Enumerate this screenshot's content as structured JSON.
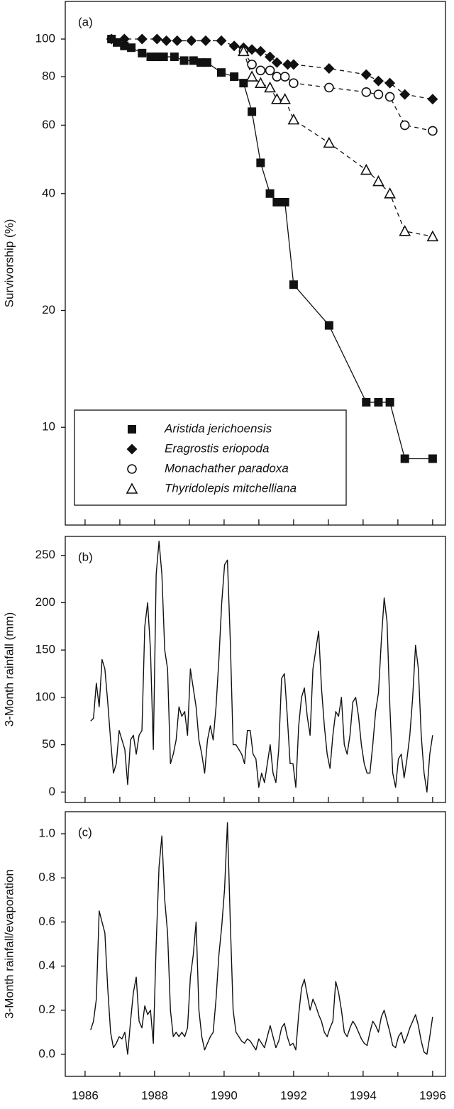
{
  "chart_data": [
    {
      "type": "line",
      "label": "(a)",
      "ylabel": "Survivorship (%)",
      "log_y": true,
      "xlim": [
        1985.43,
        1996.37
      ],
      "xticks": [
        1986,
        1987,
        1988,
        1989,
        1990,
        1991,
        1992,
        1993,
        1994,
        1995,
        1996
      ],
      "xtick_labels": false,
      "ylim": [
        5.6,
        125
      ],
      "yticks": [
        10,
        20,
        40,
        60,
        80,
        100
      ],
      "legend": "bottom-left",
      "series": [
        {
          "name": "Aristida jerichoensis",
          "color": "#111111",
          "marker": "square",
          "dash": "solid",
          "x": [
            1986.76,
            1986.92,
            1987.13,
            1987.33,
            1987.64,
            1987.89,
            1988.07,
            1988.26,
            1988.57,
            1988.85,
            1989.12,
            1989.33,
            1989.51,
            1989.92,
            1990.29,
            1990.56,
            1990.8,
            1991.05,
            1991.32,
            1991.52,
            1991.75,
            1992.0,
            1993.02,
            1994.09,
            1994.44,
            1994.77,
            1995.2,
            1996.0
          ],
          "values": [
            100,
            98,
            96,
            95,
            92,
            90,
            90,
            90,
            90,
            88,
            88,
            87,
            87,
            82,
            80,
            77,
            65,
            48,
            40,
            38,
            38,
            23.3,
            18.3,
            11.6,
            11.6,
            11.6,
            8.3,
            8.3
          ]
        },
        {
          "name": "Eragrostis eriopoda",
          "color": "#111111",
          "marker": "diamond",
          "dash": "dashed",
          "x": [
            1986.76,
            1987.13,
            1987.64,
            1988.07,
            1988.34,
            1988.65,
            1989.06,
            1989.47,
            1989.92,
            1990.29,
            1990.56,
            1990.8,
            1991.05,
            1991.32,
            1991.52,
            1991.83,
            1992.0,
            1993.02,
            1994.09,
            1994.44,
            1994.77,
            1995.2,
            1996.0
          ],
          "values": [
            100,
            100,
            100,
            100,
            99,
            99,
            99,
            99,
            99,
            96,
            95,
            94,
            93,
            90,
            87,
            86,
            86,
            84,
            81,
            78,
            77,
            72,
            70
          ]
        },
        {
          "name": "Monachather paradoxa",
          "color": "#111111",
          "marker": "circle-open",
          "dash": "dashed",
          "x": [
            1990.56,
            1990.8,
            1991.05,
            1991.32,
            1991.52,
            1991.75,
            1992.0,
            1993.02,
            1994.09,
            1994.44,
            1994.77,
            1995.2,
            1996.0
          ],
          "values": [
            93,
            86,
            83,
            83,
            80,
            80,
            77,
            75,
            73,
            72,
            71,
            60,
            58
          ]
        },
        {
          "name": "Thyridolepis mitchelliana",
          "color": "#111111",
          "marker": "triangle-open",
          "dash": "dashed",
          "x": [
            1990.56,
            1990.8,
            1991.05,
            1991.32,
            1991.52,
            1991.75,
            1992.0,
            1993.02,
            1994.09,
            1994.44,
            1994.77,
            1995.2,
            1996.0
          ],
          "values": [
            93,
            80,
            77,
            75,
            70,
            70,
            62,
            54,
            46,
            43,
            40,
            32,
            31
          ]
        }
      ]
    },
    {
      "type": "line",
      "label": "(b)",
      "ylabel": "3-Month rainfall (mm)",
      "xlim": [
        1985.43,
        1996.37
      ],
      "xticks": [
        1986,
        1987,
        1988,
        1989,
        1990,
        1991,
        1992,
        1993,
        1994,
        1995,
        1996
      ],
      "xtick_labels": false,
      "ylim": [
        -11,
        270
      ],
      "yticks": [
        0,
        50,
        100,
        150,
        200,
        250
      ],
      "x": [
        1986.16,
        1986.242,
        1986.324,
        1986.406,
        1986.488,
        1986.57,
        1986.652,
        1986.734,
        1986.816,
        1986.898,
        1986.98,
        1987.062,
        1987.144,
        1987.226,
        1987.308,
        1987.39,
        1987.472,
        1987.554,
        1987.636,
        1987.718,
        1987.8,
        1987.882,
        1987.964,
        1988.046,
        1988.128,
        1988.21,
        1988.292,
        1988.374,
        1988.456,
        1988.538,
        1988.62,
        1988.702,
        1988.784,
        1988.866,
        1988.948,
        1989.03,
        1989.112,
        1989.194,
        1989.276,
        1989.358,
        1989.44,
        1989.522,
        1989.604,
        1989.686,
        1989.768,
        1989.85,
        1989.932,
        1990.014,
        1990.096,
        1990.178,
        1990.26,
        1990.342,
        1990.424,
        1990.506,
        1990.588,
        1990.67,
        1990.752,
        1990.834,
        1990.916,
        1990.998,
        1991.08,
        1991.162,
        1991.244,
        1991.326,
        1991.408,
        1991.49,
        1991.572,
        1991.654,
        1991.736,
        1991.818,
        1991.9,
        1991.982,
        1992.064,
        1992.146,
        1992.228,
        1992.31,
        1992.392,
        1992.474,
        1992.556,
        1992.638,
        1992.72,
        1992.802,
        1992.884,
        1992.966,
        1993.048,
        1993.13,
        1993.212,
        1993.294,
        1993.376,
        1993.458,
        1993.54,
        1993.622,
        1993.704,
        1993.786,
        1993.868,
        1993.95,
        1994.032,
        1994.114,
        1994.196,
        1994.278,
        1994.36,
        1994.442,
        1994.524,
        1994.606,
        1994.688,
        1994.77,
        1994.852,
        1994.934,
        1995.016,
        1995.098,
        1995.18,
        1995.262,
        1995.344,
        1995.426,
        1995.508,
        1995.59,
        1995.672,
        1995.754,
        1995.836,
        1995.918,
        1996.0
      ],
      "series": [
        {
          "color": "#111111",
          "values": [
            75,
            78,
            115,
            90,
            140,
            130,
            95,
            55,
            20,
            30,
            65,
            55,
            45,
            8,
            55,
            60,
            40,
            60,
            65,
            175,
            200,
            150,
            45,
            230,
            265,
            230,
            150,
            130,
            30,
            40,
            55,
            90,
            80,
            85,
            60,
            130,
            110,
            90,
            55,
            40,
            20,
            55,
            70,
            55,
            90,
            140,
            200,
            240,
            245,
            160,
            50,
            50,
            45,
            40,
            30,
            65,
            65,
            40,
            35,
            5,
            20,
            10,
            30,
            50,
            20,
            10,
            45,
            120,
            125,
            80,
            30,
            30,
            5,
            70,
            100,
            110,
            80,
            60,
            130,
            150,
            170,
            110,
            70,
            40,
            25,
            60,
            85,
            80,
            100,
            50,
            40,
            60,
            95,
            100,
            80,
            50,
            30,
            20,
            20,
            50,
            85,
            105,
            160,
            205,
            180,
            90,
            20,
            5,
            35,
            40,
            15,
            35,
            60,
            100,
            155,
            130,
            60,
            20,
            0,
            40,
            60
          ]
        }
      ]
    },
    {
      "type": "line",
      "label": "(c)",
      "ylabel": "3-Month rainfall/evaporation",
      "xlim": [
        1985.43,
        1996.37
      ],
      "xticks": [
        1986,
        1988,
        1990,
        1992,
        1994,
        1996
      ],
      "minor_xticks": [
        1987,
        1989,
        1991,
        1993,
        1995
      ],
      "xtick_labels": true,
      "ylim": [
        -0.1,
        1.1
      ],
      "yticks": [
        {
          "value": 0,
          "label": "0.0"
        },
        0.2,
        0.4,
        0.6,
        0.8,
        {
          "value": 1,
          "label": "1.0"
        }
      ],
      "x": [
        1986.16,
        1986.242,
        1986.324,
        1986.406,
        1986.488,
        1986.57,
        1986.652,
        1986.734,
        1986.816,
        1986.898,
        1986.98,
        1987.062,
        1987.144,
        1987.226,
        1987.308,
        1987.39,
        1987.472,
        1987.554,
        1987.636,
        1987.718,
        1987.8,
        1987.882,
        1987.964,
        1988.046,
        1988.128,
        1988.21,
        1988.292,
        1988.374,
        1988.456,
        1988.538,
        1988.62,
        1988.702,
        1988.784,
        1988.866,
        1988.948,
        1989.03,
        1989.112,
        1989.194,
        1989.276,
        1989.358,
        1989.44,
        1989.522,
        1989.604,
        1989.686,
        1989.768,
        1989.85,
        1989.932,
        1990.014,
        1990.096,
        1990.178,
        1990.26,
        1990.342,
        1990.424,
        1990.506,
        1990.588,
        1990.67,
        1990.752,
        1990.834,
        1990.916,
        1990.998,
        1991.08,
        1991.162,
        1991.244,
        1991.326,
        1991.408,
        1991.49,
        1991.572,
        1991.654,
        1991.736,
        1991.818,
        1991.9,
        1991.982,
        1992.064,
        1992.146,
        1992.228,
        1992.31,
        1992.392,
        1992.474,
        1992.556,
        1992.638,
        1992.72,
        1992.802,
        1992.884,
        1992.966,
        1993.048,
        1993.13,
        1993.212,
        1993.294,
        1993.376,
        1993.458,
        1993.54,
        1993.622,
        1993.704,
        1993.786,
        1993.868,
        1993.95,
        1994.032,
        1994.114,
        1994.196,
        1994.278,
        1994.36,
        1994.442,
        1994.524,
        1994.606,
        1994.688,
        1994.77,
        1994.852,
        1994.934,
        1995.016,
        1995.098,
        1995.18,
        1995.262,
        1995.344,
        1995.426,
        1995.508,
        1995.59,
        1995.672,
        1995.754,
        1995.836,
        1995.918,
        1996.0
      ],
      "series": [
        {
          "color": "#111111",
          "values": [
            0.11,
            0.15,
            0.25,
            0.65,
            0.6,
            0.55,
            0.3,
            0.1,
            0.03,
            0.05,
            0.08,
            0.07,
            0.1,
            0.0,
            0.15,
            0.28,
            0.35,
            0.15,
            0.12,
            0.22,
            0.18,
            0.2,
            0.05,
            0.5,
            0.85,
            0.99,
            0.7,
            0.55,
            0.2,
            0.08,
            0.1,
            0.08,
            0.1,
            0.08,
            0.12,
            0.35,
            0.45,
            0.6,
            0.2,
            0.08,
            0.02,
            0.05,
            0.08,
            0.1,
            0.25,
            0.45,
            0.58,
            0.75,
            1.05,
            0.6,
            0.2,
            0.1,
            0.08,
            0.06,
            0.05,
            0.07,
            0.06,
            0.04,
            0.02,
            0.07,
            0.05,
            0.03,
            0.08,
            0.13,
            0.08,
            0.03,
            0.06,
            0.12,
            0.14,
            0.08,
            0.04,
            0.05,
            0.02,
            0.18,
            0.3,
            0.34,
            0.27,
            0.2,
            0.25,
            0.22,
            0.18,
            0.15,
            0.1,
            0.08,
            0.12,
            0.15,
            0.33,
            0.28,
            0.2,
            0.1,
            0.08,
            0.12,
            0.15,
            0.13,
            0.1,
            0.07,
            0.05,
            0.04,
            0.1,
            0.15,
            0.13,
            0.1,
            0.17,
            0.2,
            0.15,
            0.1,
            0.04,
            0.03,
            0.08,
            0.1,
            0.05,
            0.08,
            0.12,
            0.15,
            0.18,
            0.13,
            0.06,
            0.01,
            0.0,
            0.08,
            0.17
          ]
        }
      ]
    }
  ]
}
